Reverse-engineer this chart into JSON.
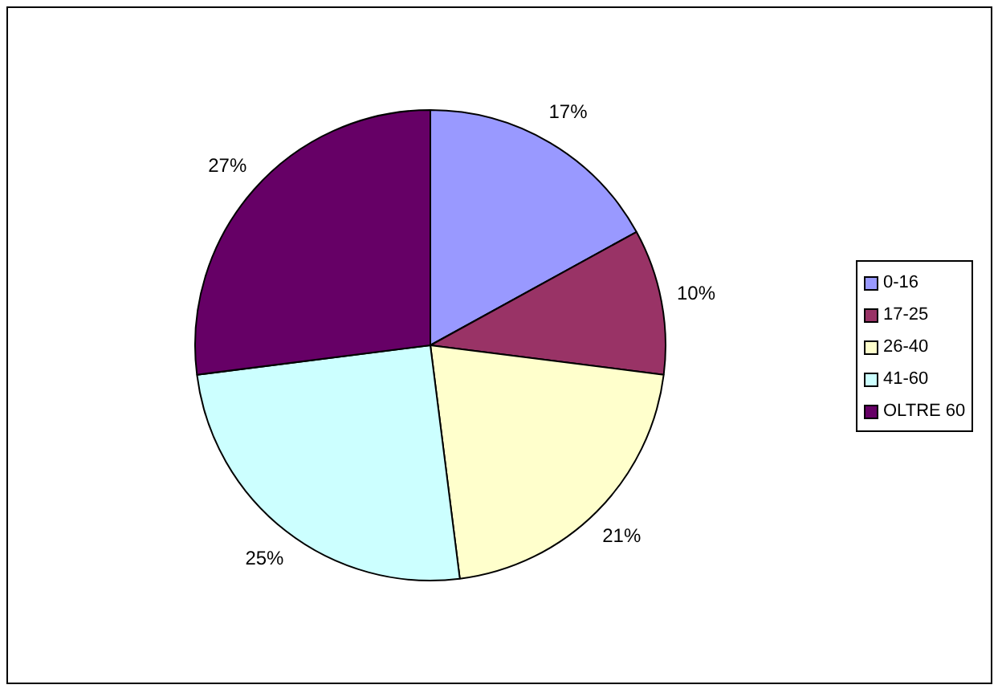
{
  "chart_data": {
    "type": "pie",
    "categories": [
      "0-16",
      "17-25",
      "26-40",
      "41-60",
      "OLTRE 60"
    ],
    "values": [
      17,
      10,
      21,
      25,
      27
    ],
    "colors": [
      "#9999ff",
      "#993366",
      "#ffffcc",
      "#ccffff",
      "#660066"
    ],
    "value_labels": [
      "17%",
      "10%",
      "21%",
      "25%",
      "27%"
    ],
    "legend": "right"
  }
}
